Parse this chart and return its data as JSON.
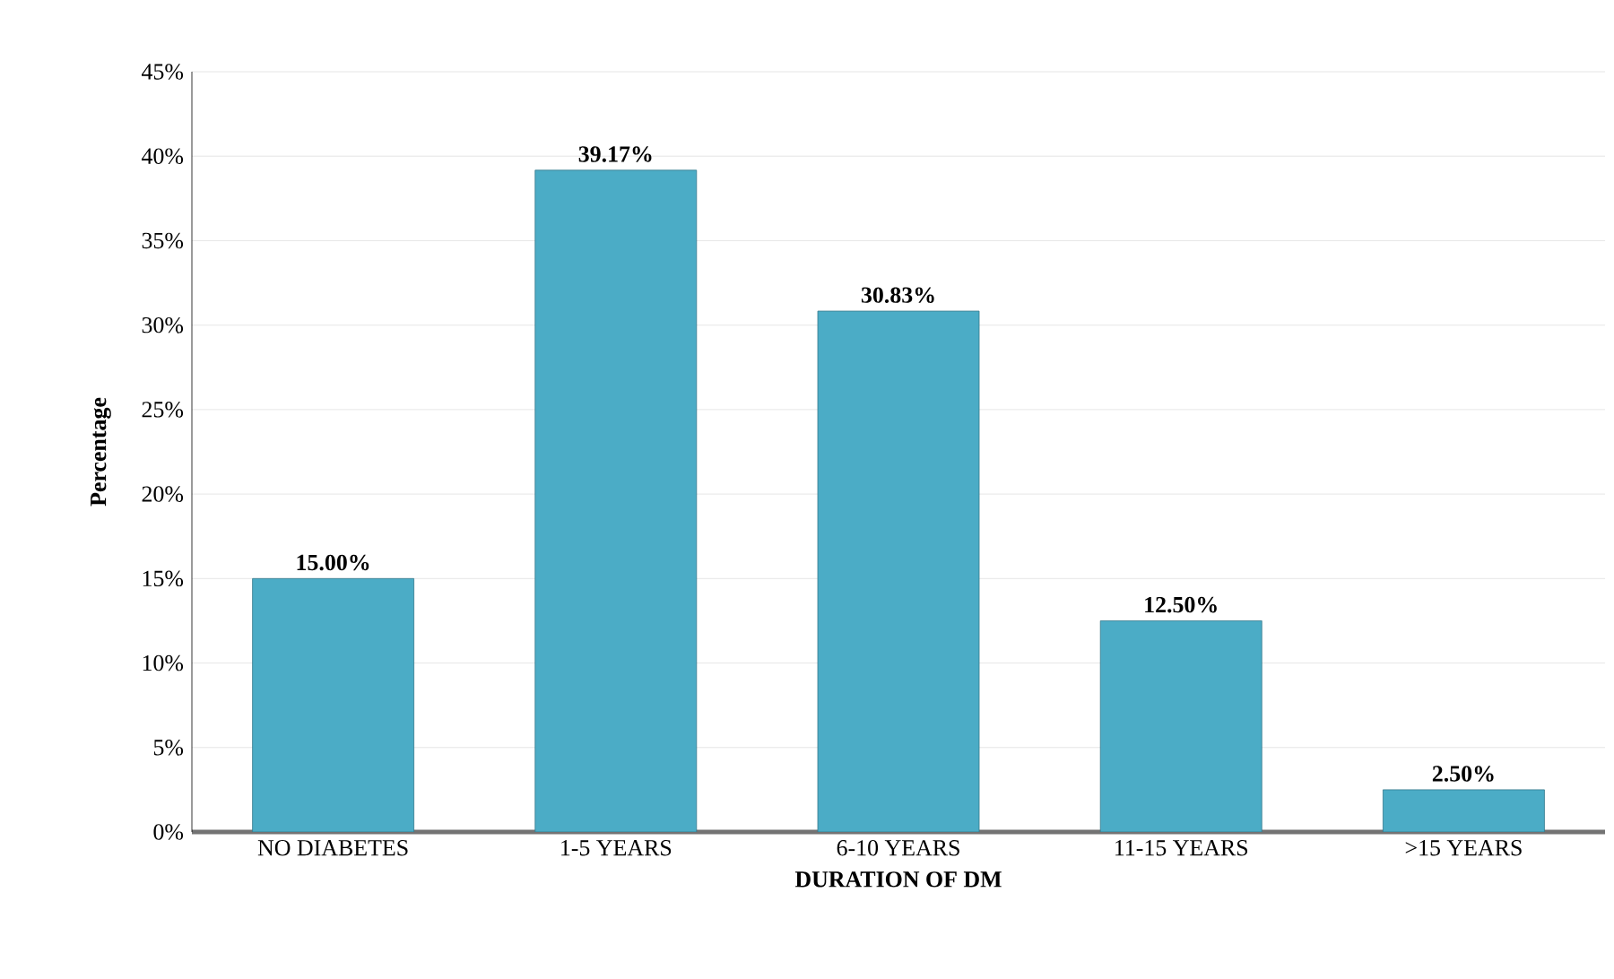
{
  "chart_data": {
    "type": "bar",
    "xlabel": "DURATION OF DM",
    "ylabel": "Percentage",
    "categories": [
      "NO DIABETES",
      "1-5 YEARS",
      "6-10 YEARS",
      "11-15 YEARS",
      ">15 YEARS"
    ],
    "values": [
      15.0,
      39.17,
      30.83,
      12.5,
      2.5
    ],
    "value_labels": [
      "15.00%",
      "39.17%",
      "30.83%",
      "12.50%",
      "2.50%"
    ],
    "color": "#4bacc6",
    "ylim": [
      0,
      45
    ],
    "yticks": [
      {
        "value": 0,
        "label": "0%"
      },
      {
        "value": 5,
        "label": "5%"
      },
      {
        "value": 10,
        "label": "10%"
      },
      {
        "value": 15,
        "label": "15%"
      },
      {
        "value": 20,
        "label": "20%"
      },
      {
        "value": 25,
        "label": "25%"
      },
      {
        "value": 30,
        "label": "30%"
      },
      {
        "value": 35,
        "label": "35%"
      },
      {
        "value": 40,
        "label": "40%"
      },
      {
        "value": 45,
        "label": "45%"
      }
    ],
    "grid": "y"
  }
}
